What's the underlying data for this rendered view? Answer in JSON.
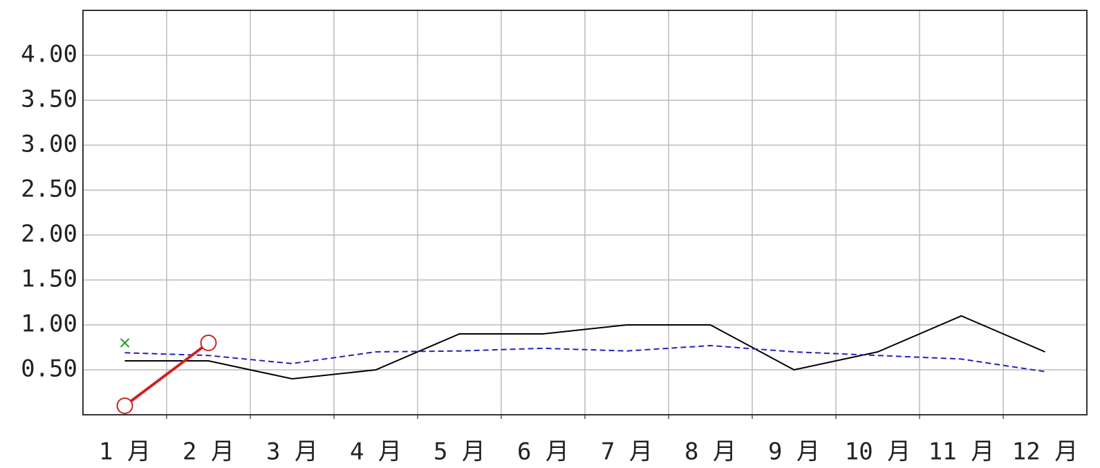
{
  "chart_data": {
    "type": "line",
    "categories": [
      "1 月",
      "2 月",
      "3 月",
      "4 月",
      "5 月",
      "6 月",
      "7 月",
      "8 月",
      "9 月",
      "10 月",
      "11 月",
      "12 月"
    ],
    "series": [
      {
        "color": "#000000",
        "dash": false,
        "marker": "none",
        "values": [
          0.6,
          0.6,
          0.4,
          0.5,
          0.9,
          0.9,
          1.0,
          1.0,
          0.5,
          0.7,
          1.1,
          0.7
        ]
      },
      {
        "color": "#2020c0",
        "dash": true,
        "marker": "none",
        "values": [
          0.69,
          0.66,
          0.57,
          0.7,
          0.71,
          0.74,
          0.71,
          0.77,
          0.7,
          0.66,
          0.62,
          0.48
        ]
      },
      {
        "color": "#d02020",
        "dash": false,
        "marker": "circle",
        "values": [
          0.1,
          0.8,
          null,
          null,
          null,
          null,
          null,
          null,
          null,
          null,
          null,
          null
        ]
      },
      {
        "color": "#20a020",
        "dash": false,
        "marker": "x",
        "values": [
          0.8,
          null,
          null,
          null,
          null,
          null,
          null,
          null,
          null,
          null,
          null,
          null
        ]
      }
    ],
    "ylim": [
      0,
      4.5
    ],
    "yticks": [
      {
        "value": 0.5,
        "label": "0.50"
      },
      {
        "value": 1.0,
        "label": "1.00"
      },
      {
        "value": 1.5,
        "label": "1.50"
      },
      {
        "value": 2.0,
        "label": "2.00"
      },
      {
        "value": 2.5,
        "label": "2.50"
      },
      {
        "value": 3.0,
        "label": "3.00"
      },
      {
        "value": 3.5,
        "label": "3.50"
      },
      {
        "value": 4.0,
        "label": "4.00"
      }
    ],
    "grid": true
  }
}
